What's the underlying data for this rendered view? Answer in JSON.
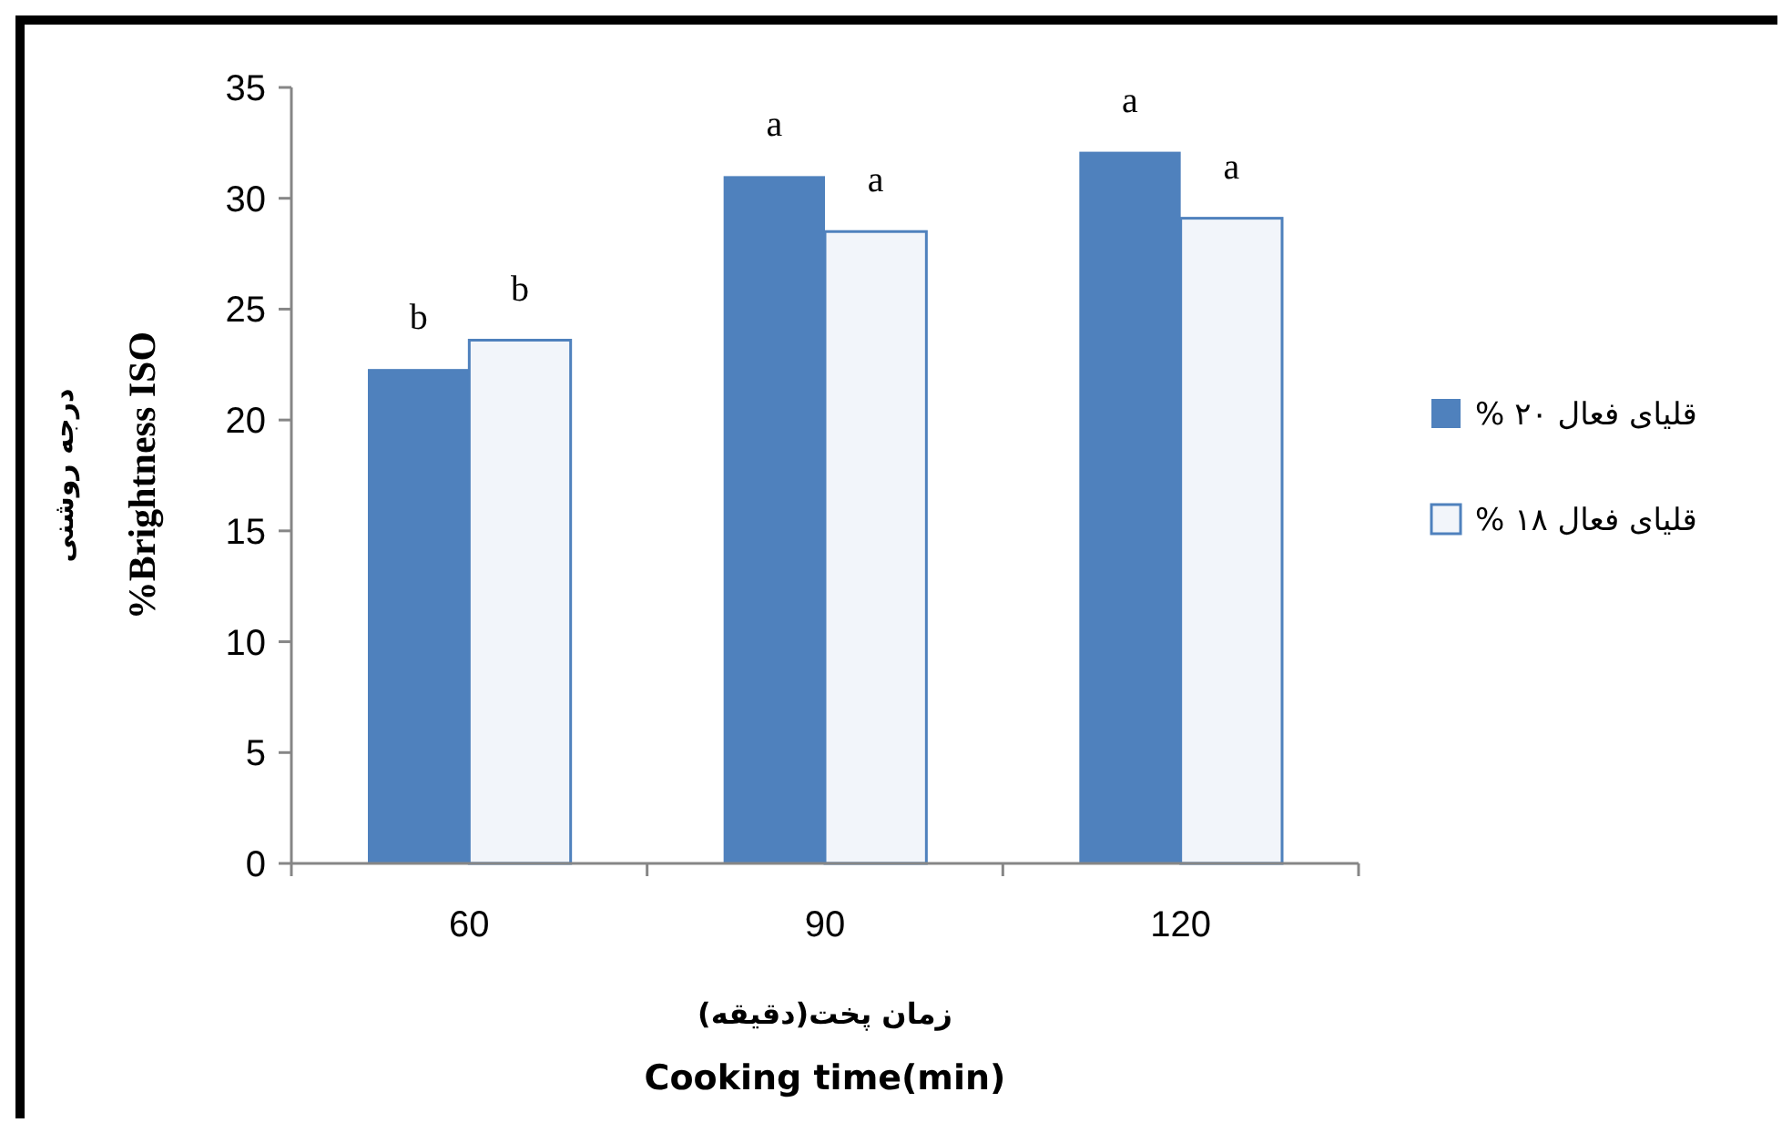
{
  "chart_data": {
    "type": "bar",
    "xlabel": "زمان پخت(دقیقه)\nCooking time(min)",
    "ylabel": "درجه روشنی\n%Brightness ISO",
    "categories": [
      "60",
      "90",
      "120"
    ],
    "series": [
      {
        "name": "قلیای فعال ۲۰ %",
        "color": "#4f81bd",
        "values": [
          22.3,
          31.0,
          32.1
        ],
        "value_labels": [
          "b",
          "a",
          "a"
        ]
      },
      {
        "name": "قلیای فعال ۱۸ %",
        "color": "#f2f5fa",
        "values": [
          23.6,
          28.5,
          29.1
        ],
        "value_labels": [
          "b",
          "a",
          "a"
        ]
      }
    ],
    "ylim": [
      0,
      35
    ],
    "yticks": [
      0,
      5,
      10,
      15,
      20,
      25,
      30,
      35
    ],
    "grid": false,
    "legend": "right"
  }
}
